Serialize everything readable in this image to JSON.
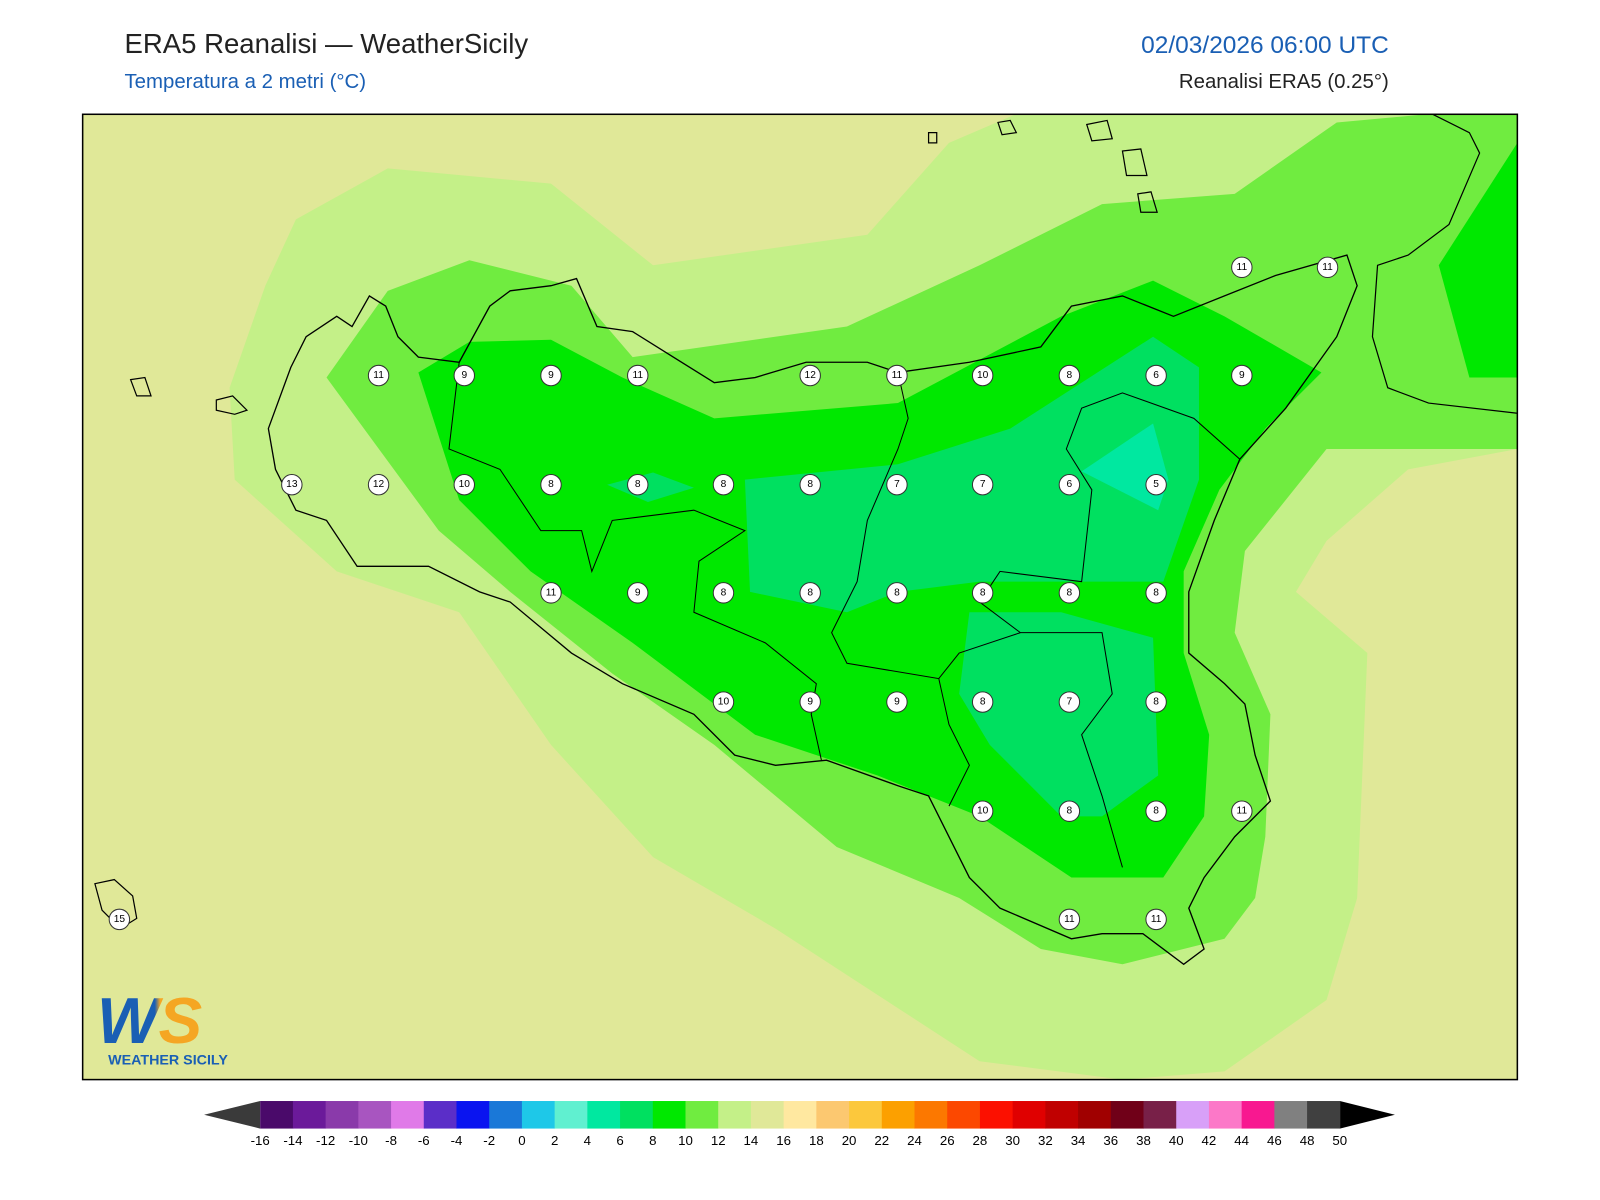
{
  "header": {
    "title": "ERA5 Reanalisi — WeatherSicily",
    "subtitle": "Temperatura a 2 metri (°C)",
    "datetime": "02/03/2026 06:00 UTC",
    "source": "Reanalisi ERA5 (0.25°)"
  },
  "stations": [
    11,
    11,
    11,
    9,
    9,
    11,
    12,
    11,
    10,
    8,
    6,
    9,
    13,
    12,
    10,
    8,
    8,
    8,
    8,
    7,
    7,
    6,
    5,
    11,
    9,
    8,
    8,
    8,
    8,
    8,
    8,
    10,
    9,
    9,
    8,
    7,
    8,
    10,
    8,
    8,
    11,
    15,
    11,
    11
  ],
  "logo": {
    "mark": "WS",
    "name": "WEATHER SICILY"
  },
  "colorbar": {
    "ticks": [
      -16,
      -14,
      -12,
      -10,
      -8,
      -6,
      -4,
      -2,
      0,
      2,
      4,
      6,
      8,
      10,
      12,
      14,
      16,
      18,
      20,
      22,
      24,
      26,
      28,
      30,
      32,
      34,
      36,
      38,
      40,
      42,
      44,
      46,
      48,
      50
    ],
    "colors": [
      "#4a0a6a",
      "#6b1a9a",
      "#8a3aaa",
      "#a855c0",
      "#e07ae8",
      "#5b2ec8",
      "#0a14f0",
      "#1a78d8",
      "#1ec8e8",
      "#60f0d0",
      "#00e8a0",
      "#00e060",
      "#00e800",
      "#70ec40",
      "#c4f088",
      "#e0e898",
      "#ffe8a0",
      "#fcc870",
      "#fcc83c",
      "#fca000",
      "#fc7800",
      "#fc4800",
      "#fc1000",
      "#e00000",
      "#c00000",
      "#a00000",
      "#700018",
      "#782048",
      "#d8a0f8",
      "#fc78c8",
      "#f81890",
      "#808080",
      "#404040"
    ],
    "under_color": "#3a3a3a",
    "over_color": "#000000"
  }
}
